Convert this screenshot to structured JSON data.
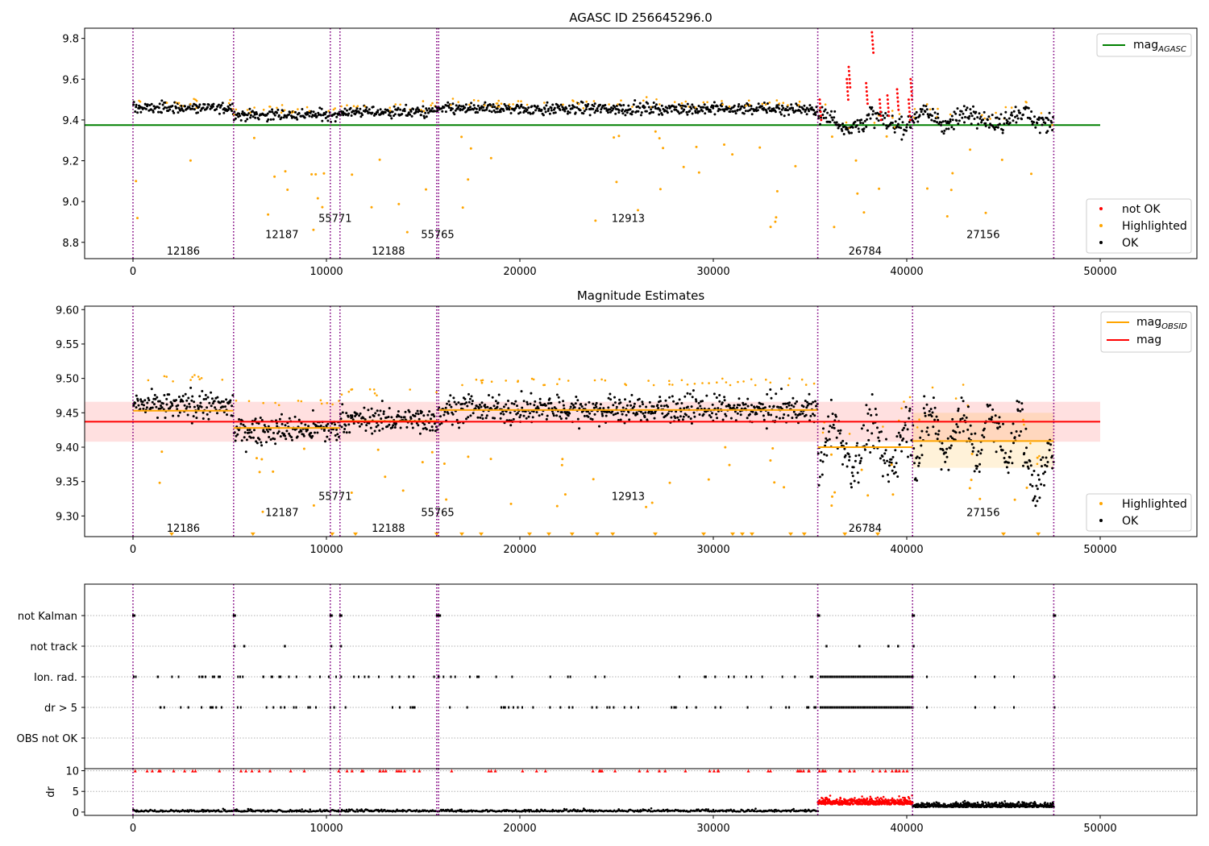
{
  "chart_data": [
    {
      "type": "scatter",
      "title": "AGASC ID 256645296.0",
      "ylim": [
        8.72,
        9.85
      ],
      "xlim": [
        -2500,
        55000
      ],
      "xticks": [
        0,
        10000,
        20000,
        30000,
        40000,
        50000
      ],
      "yticks": [
        8.8,
        9.0,
        9.2,
        9.4,
        9.6,
        9.8
      ],
      "ytick_labels": [
        "8.8",
        "9.0",
        "9.2",
        "9.4",
        "9.6",
        "9.8"
      ],
      "mag_agasc": 9.375,
      "obsid_boundaries": [
        0,
        5200,
        10200,
        10700,
        15700,
        15800,
        35400,
        40300,
        47600
      ],
      "obsid_labels": [
        {
          "x": 2600,
          "y": 8.76,
          "text": "12186"
        },
        {
          "x": 7700,
          "y": 8.84,
          "text": "12187"
        },
        {
          "x": 10450,
          "y": 8.92,
          "text": "55771"
        },
        {
          "x": 13200,
          "y": 8.76,
          "text": "12188"
        },
        {
          "x": 15750,
          "y": 8.84,
          "text": "55765"
        },
        {
          "x": 25600,
          "y": 8.92,
          "text": "12913"
        },
        {
          "x": 37850,
          "y": 8.76,
          "text": "26784"
        },
        {
          "x": 43950,
          "y": 8.84,
          "text": "27156"
        }
      ],
      "segments": [
        {
          "start": 0,
          "end": 5200,
          "mean": 9.46,
          "scatter": 0.04
        },
        {
          "start": 5200,
          "end": 10700,
          "mean": 9.425,
          "scatter": 0.04
        },
        {
          "start": 10700,
          "end": 15800,
          "mean": 9.44,
          "scatter": 0.04
        },
        {
          "start": 15800,
          "end": 35400,
          "mean": 9.455,
          "scatter": 0.04
        },
        {
          "start": 35400,
          "end": 40300,
          "mean": 9.39,
          "scatter": 0.07
        },
        {
          "start": 40300,
          "end": 47600,
          "mean": 9.41,
          "scatter": 0.07
        }
      ],
      "legend_top": [
        {
          "label": "mag",
          "sub": "AGASC",
          "color": "#008000"
        }
      ],
      "legend_bottom": [
        {
          "label": "not OK",
          "color": "#ff0000"
        },
        {
          "label": "Highlighted",
          "color": "#ffa500"
        },
        {
          "label": "OK",
          "color": "#000000"
        }
      ]
    },
    {
      "type": "scatter",
      "title": "Magnitude Estimates",
      "ylim": [
        9.27,
        9.605
      ],
      "xlim": [
        -2500,
        55000
      ],
      "xticks": [
        0,
        10000,
        20000,
        30000,
        40000,
        50000
      ],
      "yticks": [
        9.3,
        9.35,
        9.4,
        9.45,
        9.5,
        9.55,
        9.6
      ],
      "ytick_labels": [
        "9.30",
        "9.35",
        "9.40",
        "9.45",
        "9.50",
        "9.55",
        "9.60"
      ],
      "mag": 9.437,
      "mag_band": [
        9.408,
        9.466
      ],
      "obsid_mag": [
        {
          "start": 0,
          "end": 5200,
          "mag": 9.453
        },
        {
          "start": 5200,
          "end": 10700,
          "mag": 9.428
        },
        {
          "start": 10700,
          "end": 15800,
          "mag": 9.438
        },
        {
          "start": 15800,
          "end": 35400,
          "mag": 9.454
        },
        {
          "start": 35400,
          "end": 40300,
          "mag": 9.4
        },
        {
          "start": 40300,
          "end": 47600,
          "mag": 9.409
        }
      ],
      "obsid_labels": [
        {
          "x": 2600,
          "y": 9.283,
          "text": "12186"
        },
        {
          "x": 7700,
          "y": 9.306,
          "text": "12187"
        },
        {
          "x": 10450,
          "y": 9.329,
          "text": "55771"
        },
        {
          "x": 13200,
          "y": 9.283,
          "text": "12188"
        },
        {
          "x": 15750,
          "y": 9.306,
          "text": "55765"
        },
        {
          "x": 25600,
          "y": 9.329,
          "text": "12913"
        },
        {
          "x": 37850,
          "y": 9.283,
          "text": "26784"
        },
        {
          "x": 43950,
          "y": 9.306,
          "text": "27156"
        }
      ],
      "legend_top": [
        {
          "label": "mag",
          "sub": "OBSID",
          "color": "#ffa500"
        },
        {
          "label": "mag",
          "sub": "",
          "color": "#ff0000"
        }
      ],
      "legend_bottom": [
        {
          "label": "Highlighted",
          "color": "#ffa500"
        },
        {
          "label": "OK",
          "color": "#000000"
        }
      ]
    },
    {
      "type": "scatter",
      "title": "",
      "xlim": [
        -2500,
        55000
      ],
      "categories": [
        "not Kalman",
        "not track",
        "Ion. rad.",
        "dr > 5",
        "OBS not OK"
      ]
    },
    {
      "type": "scatter",
      "title": "",
      "ylabel": "dr",
      "ylim": [
        -0.8,
        10.5
      ],
      "xlim": [
        -2500,
        55000
      ],
      "xticks": [
        0,
        10000,
        20000,
        30000,
        40000,
        50000
      ],
      "yticks": [
        0,
        5,
        10
      ],
      "ytick_labels": [
        "0",
        "5",
        "10"
      ]
    }
  ]
}
